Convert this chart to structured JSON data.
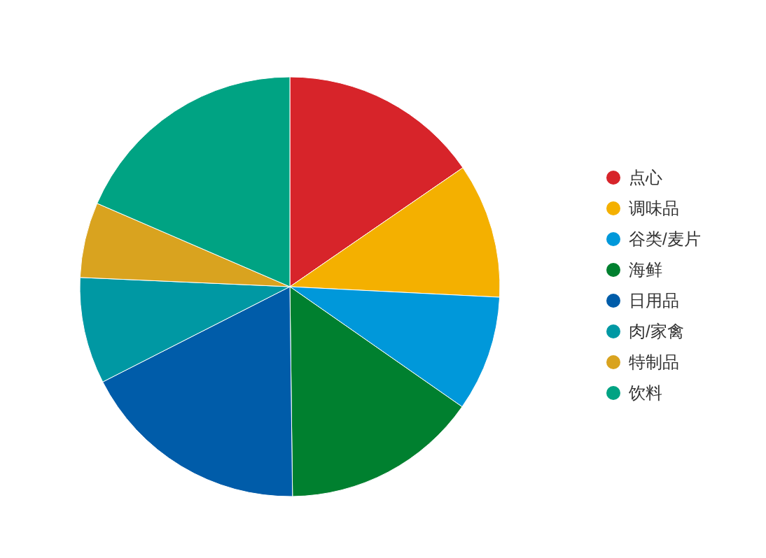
{
  "chart_data": {
    "type": "pie",
    "legend": "right",
    "categories": [
      "点心",
      "调味品",
      "谷类/麦片",
      "海鲜",
      "日用品",
      "肉/家禽",
      "特制品",
      "饮料"
    ],
    "values": [
      15.4,
      10.4,
      8.9,
      15.1,
      17.7,
      8.2,
      5.8,
      18.5
    ],
    "colors": [
      "#d7242a",
      "#f4b000",
      "#0098da",
      "#00802f",
      "#005ca9",
      "#0098a3",
      "#d9a31f",
      "#00a383"
    ]
  }
}
